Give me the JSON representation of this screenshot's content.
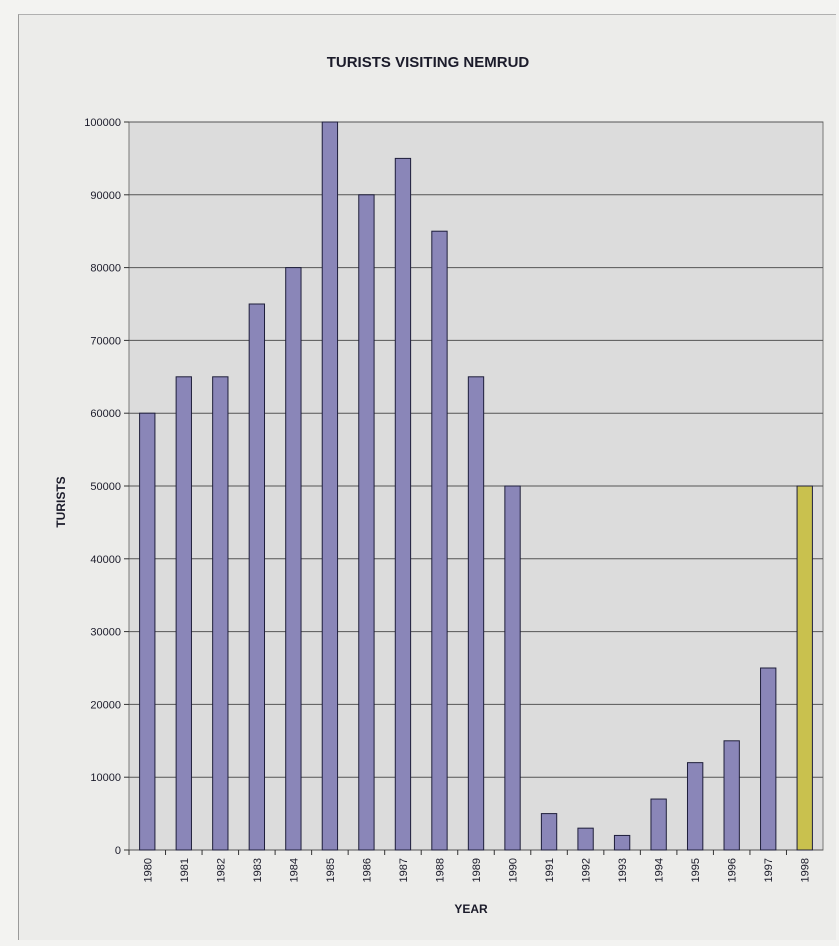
{
  "chart_data": {
    "type": "bar",
    "title": "TURISTS VISITING NEMRUD",
    "xlabel": "YEAR",
    "ylabel": "TURISTS",
    "ylim": [
      0,
      100000
    ],
    "yticks": [
      "0",
      "10000",
      "20000",
      "30000",
      "40000",
      "50000",
      "60000",
      "70000",
      "80000",
      "90000",
      "100000"
    ],
    "grid": true,
    "categories": [
      "1980",
      "1981",
      "1982",
      "1983",
      "1984",
      "1985",
      "1986",
      "1987",
      "1988",
      "1989",
      "1990",
      "1991",
      "1992",
      "1993",
      "1994",
      "1995",
      "1996",
      "1997",
      "1998"
    ],
    "values": [
      60000,
      65000,
      65000,
      75000,
      80000,
      100000,
      90000,
      95000,
      85000,
      65000,
      50000,
      5000,
      3000,
      2000,
      7000,
      12000,
      15000,
      25000,
      50000
    ],
    "colors": {
      "bar": "#8a86b8",
      "highlight_bar": "#c9c14e",
      "plot_background": "#dcdcdc",
      "gridline": "#555555"
    },
    "highlight_category": "1998"
  }
}
